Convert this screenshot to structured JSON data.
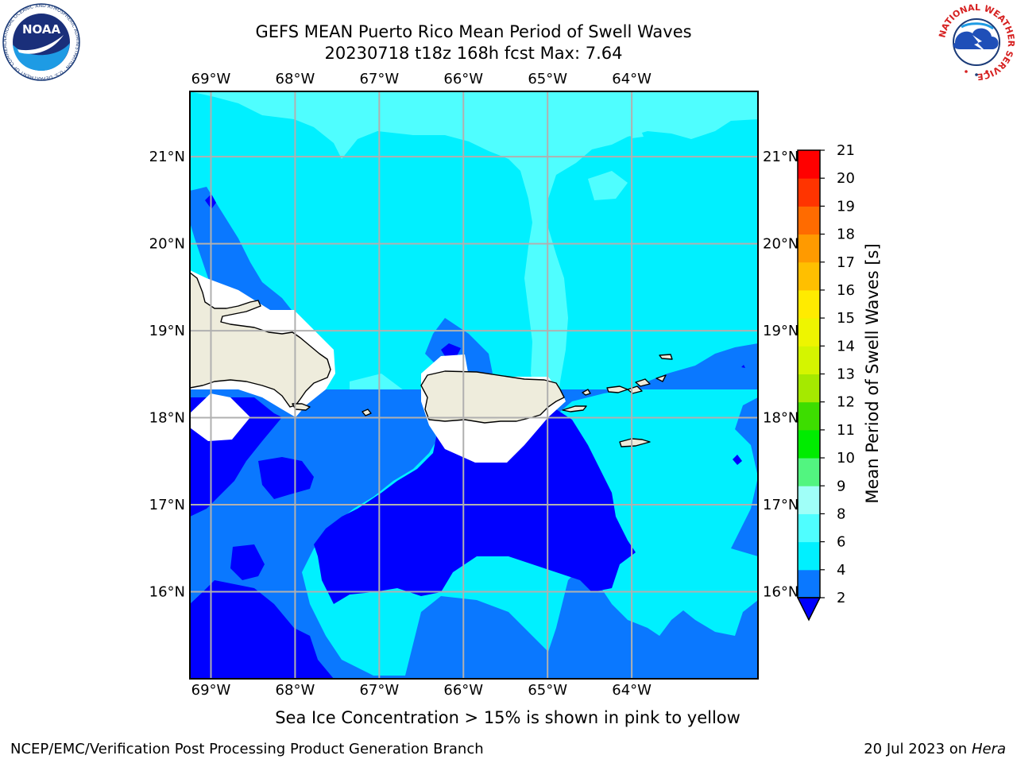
{
  "title": {
    "line1": "GEFS MEAN Puerto Rico Mean Period of Swell Waves",
    "line2": "20230718 t18z 168h fcst   Max: 7.64"
  },
  "map": {
    "lon_ticks": [
      "69°W",
      "68°W",
      "67°W",
      "66°W",
      "65°W",
      "64°W"
    ],
    "lat_ticks": [
      "21°N",
      "20°N",
      "19°N",
      "18°N",
      "17°N",
      "16°N"
    ],
    "extent": {
      "lon_min": -69.25,
      "lon_max": -62.5,
      "lat_min": 15.0,
      "lat_max": 21.75
    },
    "land_color": "#eeecdc",
    "ocean_colors": {
      "2": "#0000ff",
      "2-4": "#0a78ff",
      "4-6": "#00f0ff",
      "6-8": "#4ffeff"
    }
  },
  "colorbar": {
    "label": "Mean Period of Swell Waves [s]",
    "levels": [
      "2",
      "4",
      "6",
      "8",
      "9",
      "10",
      "11",
      "12",
      "13",
      "14",
      "15",
      "16",
      "17",
      "18",
      "19",
      "20",
      "21"
    ],
    "colors": [
      "#0a78ff",
      "#00f0ff",
      "#4ffeff",
      "#a0fff8",
      "#52f580",
      "#00ec00",
      "#3ddd00",
      "#a5e900",
      "#d4f500",
      "#eef500",
      "#ffeb00",
      "#ffbf00",
      "#ff9a00",
      "#ff6b00",
      "#ff3400",
      "#ff0000"
    ],
    "extend_color": "#0000ff"
  },
  "footnote": "Sea Ice Concentration > 15% is shown in pink to yellow",
  "footer": {
    "left": "NCEP/EMC/Verification Post Processing Product Generation Branch",
    "right_text": "20 Jul 2023 on ",
    "right_machine": "Hera"
  },
  "logos": {
    "noaa_text": "NOAA",
    "noaa_ring": "NATIONAL OCEANIC AND ATMOSPHERIC ADMINISTRATION · U.S. DEPARTMENT OF COMMERCE",
    "nws_ring": "NATIONAL WEATHER SERVICE"
  }
}
